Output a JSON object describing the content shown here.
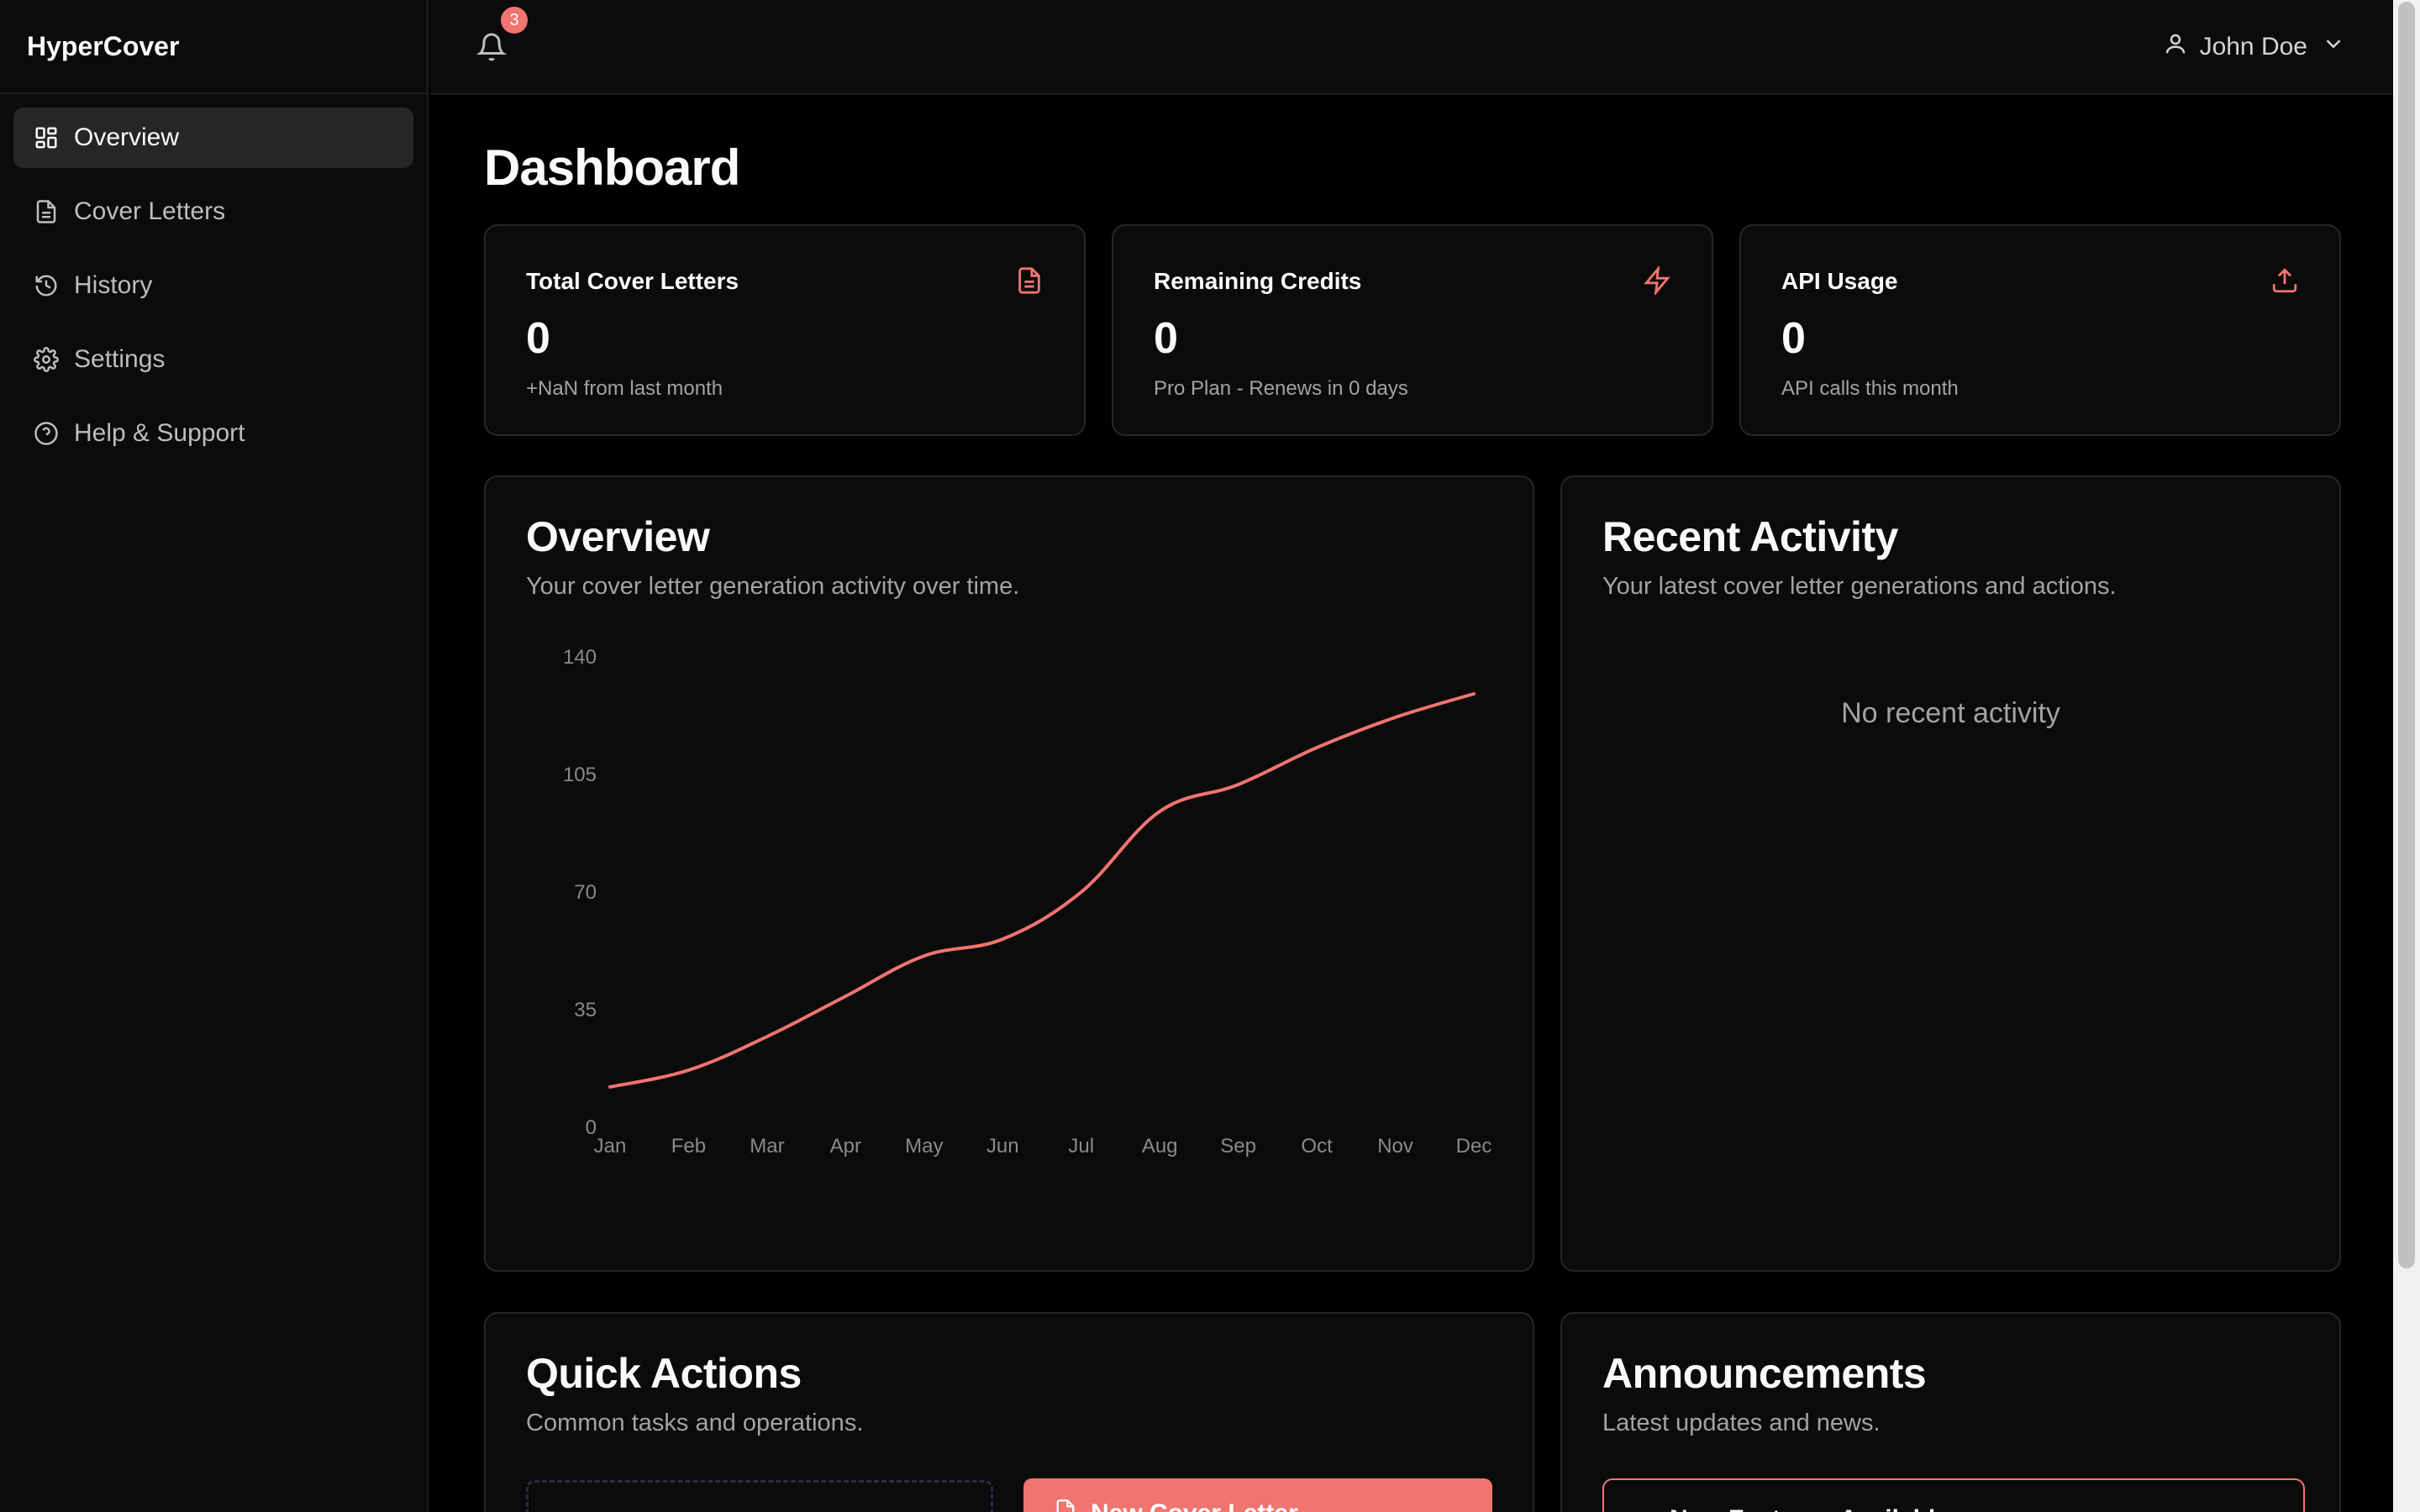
{
  "app": {
    "name": "HyperCover"
  },
  "sidebar": {
    "items": [
      {
        "label": "Overview",
        "icon": "grid-icon",
        "active": true
      },
      {
        "label": "Cover Letters",
        "icon": "document-icon",
        "active": false
      },
      {
        "label": "History",
        "icon": "history-icon",
        "active": false
      },
      {
        "label": "Settings",
        "icon": "gear-icon",
        "active": false
      },
      {
        "label": "Help & Support",
        "icon": "help-circle-icon",
        "active": false
      }
    ]
  },
  "header": {
    "notifications_count": "3",
    "user_name": "John Doe"
  },
  "page": {
    "title": "Dashboard"
  },
  "stats": [
    {
      "title": "Total Cover Letters",
      "value": "0",
      "sub": "+NaN from last month",
      "icon": "document-icon"
    },
    {
      "title": "Remaining Credits",
      "value": "0",
      "sub": "Pro Plan - Renews in 0 days",
      "icon": "lightning-icon"
    },
    {
      "title": "API Usage",
      "value": "0",
      "sub": "API calls this month",
      "icon": "upload-icon"
    }
  ],
  "overview": {
    "title": "Overview",
    "description": "Your cover letter generation activity over time."
  },
  "recent_activity": {
    "title": "Recent Activity",
    "description": "Your latest cover letter generations and actions.",
    "empty_text": "No recent activity"
  },
  "quick_actions": {
    "title": "Quick Actions",
    "description": "Common tasks and operations.",
    "primary_label": "New Cover Letter"
  },
  "announcements": {
    "title": "Announcements",
    "description": "Latest updates and news.",
    "first_item": "New Features Available"
  },
  "colors": {
    "accent": "#f07470",
    "background": "#000000",
    "card": "#0b0b0b",
    "border": "#262626"
  },
  "chart_data": {
    "type": "line",
    "categories": [
      "Jan",
      "Feb",
      "Mar",
      "Apr",
      "May",
      "Jun",
      "Jul",
      "Aug",
      "Sep",
      "Oct",
      "Nov",
      "Dec"
    ],
    "series": [
      {
        "values": [
          12,
          17,
          27,
          39,
          51,
          56,
          70,
          94,
          102,
          113,
          122,
          129
        ]
      }
    ],
    "yticks": [
      0,
      35,
      70,
      105,
      140
    ],
    "ylim": [
      0,
      140
    ],
    "grid": false,
    "line_color": "#f07470"
  }
}
